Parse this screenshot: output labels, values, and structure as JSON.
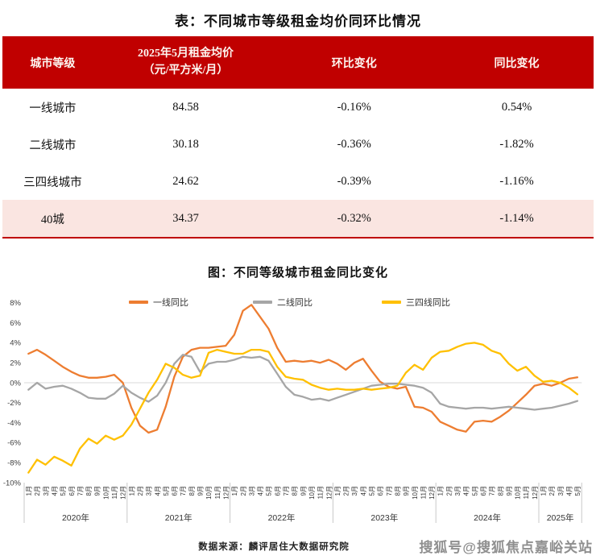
{
  "page_title": "表：不同城市等级租金均价同环比情况",
  "table": {
    "headers": {
      "tier": "城市等级",
      "price_line1": "2025年5月租金均价",
      "price_line2": "（元/平方米/月）",
      "mom": "环比变化",
      "yoy": "同比变化"
    },
    "rows": [
      {
        "tier": "一线城市",
        "price": "84.58",
        "mom": "-0.16%",
        "yoy": "0.54%"
      },
      {
        "tier": "二线城市",
        "price": "30.18",
        "mom": "-0.36%",
        "yoy": "-1.82%"
      },
      {
        "tier": "三四线城市",
        "price": "24.62",
        "mom": "-0.39%",
        "yoy": "-1.16%"
      },
      {
        "tier": "40城",
        "price": "34.37",
        "mom": "-0.32%",
        "yoy": "-1.14%"
      }
    ],
    "header_bg": "#C00000",
    "highlight_row_bg": "#FAE5E1"
  },
  "chart": {
    "title": "图：不同等级城市租金同比变化",
    "y_ticks": [
      "8%",
      "6%",
      "4%",
      "2%",
      "0%",
      "-2%",
      "-4%",
      "-6%",
      "-8%",
      "-10%"
    ],
    "x_axis": {
      "years": [
        {
          "label": "2020年",
          "months": [
            "1月",
            "2月",
            "3月",
            "4月",
            "5月",
            "6月",
            "7月",
            "8月",
            "9月",
            "10月",
            "11月",
            "12月"
          ]
        },
        {
          "label": "2021年",
          "months": [
            "1月",
            "2月",
            "3月",
            "4月",
            "5月",
            "6月",
            "7月",
            "8月",
            "9月",
            "10月",
            "11月",
            "12月"
          ]
        },
        {
          "label": "2022年",
          "months": [
            "1月",
            "2月",
            "3月",
            "4月",
            "5月",
            "6月",
            "7月",
            "8月",
            "9月",
            "10月",
            "11月",
            "12月"
          ]
        },
        {
          "label": "2023年",
          "months": [
            "1月",
            "2月",
            "3月",
            "4月",
            "5月",
            "6月",
            "7月",
            "8月",
            "9月",
            "10月",
            "11月",
            "12月"
          ]
        },
        {
          "label": "2024年",
          "months": [
            "1月",
            "2月",
            "3月",
            "4月",
            "5月",
            "6月",
            "7月",
            "8月",
            "9月",
            "10月",
            "11月",
            "12月"
          ]
        },
        {
          "label": "2025年",
          "months": [
            "1月",
            "2月",
            "3月",
            "4月",
            "5月"
          ]
        }
      ]
    }
  },
  "chart_data": {
    "type": "line",
    "title": "图：不同等级城市租金同比变化",
    "ylim": [
      -10,
      8
    ],
    "y_unit": "%",
    "gridlines": [
      "0%"
    ],
    "legend_position": "top",
    "x": [
      "2020-01",
      "2020-02",
      "2020-03",
      "2020-04",
      "2020-05",
      "2020-06",
      "2020-07",
      "2020-08",
      "2020-09",
      "2020-10",
      "2020-11",
      "2020-12",
      "2021-01",
      "2021-02",
      "2021-03",
      "2021-04",
      "2021-05",
      "2021-06",
      "2021-07",
      "2021-08",
      "2021-09",
      "2021-10",
      "2021-11",
      "2021-12",
      "2022-01",
      "2022-02",
      "2022-03",
      "2022-04",
      "2022-05",
      "2022-06",
      "2022-07",
      "2022-08",
      "2022-09",
      "2022-10",
      "2022-11",
      "2022-12",
      "2023-01",
      "2023-02",
      "2023-03",
      "2023-04",
      "2023-05",
      "2023-06",
      "2023-07",
      "2023-08",
      "2023-09",
      "2023-10",
      "2023-11",
      "2023-12",
      "2024-01",
      "2024-02",
      "2024-03",
      "2024-04",
      "2024-05",
      "2024-06",
      "2024-07",
      "2024-08",
      "2024-09",
      "2024-10",
      "2024-11",
      "2024-12",
      "2025-01",
      "2025-02",
      "2025-03",
      "2025-04",
      "2025-05"
    ],
    "series": [
      {
        "name": "一线同比",
        "color": "#ED7D31",
        "values": [
          2.9,
          3.3,
          2.8,
          2.2,
          1.6,
          1.1,
          0.7,
          0.5,
          0.5,
          0.6,
          0.8,
          0.0,
          -2.5,
          -4.3,
          -5.0,
          -4.7,
          -2.4,
          0.6,
          2.6,
          3.3,
          3.5,
          3.5,
          3.6,
          3.7,
          4.8,
          7.2,
          7.8,
          6.6,
          5.4,
          3.5,
          2.1,
          2.2,
          2.1,
          2.2,
          2.0,
          2.3,
          1.9,
          1.3,
          2.0,
          2.4,
          1.2,
          0.1,
          -0.4,
          -0.6,
          -0.4,
          -2.4,
          -2.5,
          -2.9,
          -3.9,
          -4.3,
          -4.7,
          -4.9,
          -3.9,
          -3.8,
          -3.9,
          -3.4,
          -2.8,
          -2.0,
          -1.2,
          -0.3,
          -0.1,
          -0.3,
          0.0,
          0.4,
          0.54
        ]
      },
      {
        "name": "二线同比",
        "color": "#A6A6A6",
        "values": [
          -0.7,
          0.0,
          -0.6,
          -0.4,
          -0.3,
          -0.6,
          -1.0,
          -1.5,
          -1.6,
          -1.6,
          -1.1,
          -0.3,
          -1.0,
          -1.5,
          -1.9,
          -1.3,
          0.0,
          1.9,
          2.8,
          2.6,
          1.1,
          1.9,
          2.1,
          2.1,
          2.3,
          2.6,
          2.5,
          2.6,
          2.2,
          0.9,
          -0.4,
          -1.2,
          -1.4,
          -1.7,
          -1.6,
          -1.8,
          -1.5,
          -1.2,
          -0.9,
          -0.6,
          -0.3,
          -0.2,
          -0.1,
          -0.1,
          -0.2,
          -0.3,
          -0.5,
          -1.0,
          -2.1,
          -2.4,
          -2.5,
          -2.6,
          -2.5,
          -2.5,
          -2.6,
          -2.5,
          -2.4,
          -2.5,
          -2.6,
          -2.7,
          -2.6,
          -2.5,
          -2.3,
          -2.1,
          -1.82
        ]
      },
      {
        "name": "三四线同比",
        "color": "#FFC000",
        "values": [
          -9.0,
          -7.7,
          -8.2,
          -7.4,
          -7.8,
          -8.3,
          -6.6,
          -5.6,
          -6.1,
          -5.3,
          -5.7,
          -5.3,
          -4.2,
          -2.6,
          -1.0,
          0.3,
          1.9,
          1.5,
          0.8,
          0.5,
          0.7,
          3.0,
          3.3,
          3.1,
          2.9,
          2.9,
          3.3,
          3.3,
          3.1,
          1.6,
          0.6,
          0.4,
          0.3,
          -0.2,
          -0.5,
          -0.7,
          -0.6,
          -0.7,
          -0.7,
          -0.6,
          -0.7,
          -0.6,
          -0.5,
          -0.3,
          1.0,
          1.8,
          1.3,
          2.5,
          3.1,
          3.2,
          3.6,
          3.9,
          4.0,
          3.8,
          3.2,
          2.9,
          1.9,
          1.2,
          1.6,
          0.7,
          0.1,
          0.2,
          0.0,
          -0.5,
          -1.16
        ]
      }
    ]
  },
  "footer": {
    "source": "数据来源：麟评居住大数据研究院",
    "watermark": "搜狐号@搜狐焦点嘉峪关站"
  }
}
